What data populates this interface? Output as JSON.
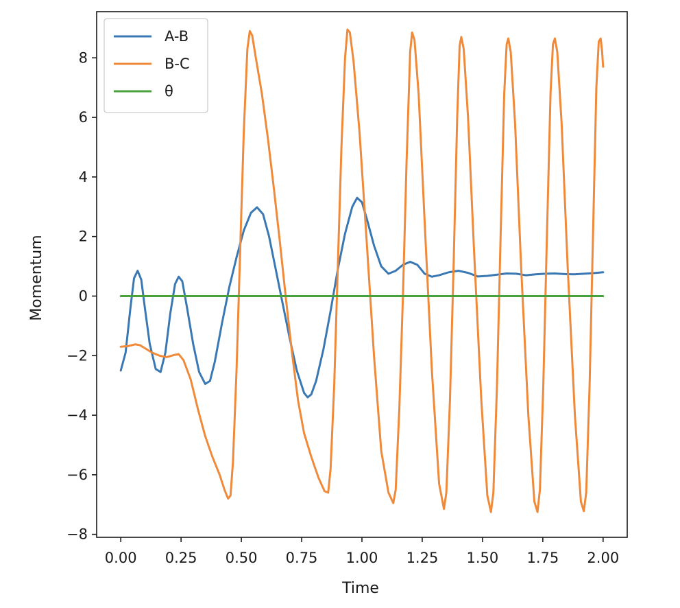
{
  "chart_data": {
    "type": "line",
    "title": "",
    "xlabel": "Time",
    "ylabel": "Momentum",
    "xlim": [
      -0.1,
      2.1
    ],
    "ylim": [
      -8.1,
      9.55
    ],
    "xticks": [
      0.0,
      0.25,
      0.5,
      0.75,
      1.0,
      1.25,
      1.5,
      1.75,
      2.0
    ],
    "xtick_labels": [
      "0.00",
      "0.25",
      "0.50",
      "0.75",
      "1.00",
      "1.25",
      "1.50",
      "1.75",
      "2.00"
    ],
    "yticks": [
      -8,
      -6,
      -4,
      -2,
      0,
      2,
      4,
      6,
      8
    ],
    "ytick_labels": [
      "−8",
      "−6",
      "−4",
      "−2",
      "0",
      "2",
      "4",
      "6",
      "8"
    ],
    "grid": false,
    "legend_position": "top-left",
    "series": [
      {
        "name": "A-B",
        "color": "#3a78b3",
        "points": [
          [
            0.0,
            -2.5
          ],
          [
            0.02,
            -1.9
          ],
          [
            0.04,
            -0.4
          ],
          [
            0.055,
            0.6
          ],
          [
            0.07,
            0.85
          ],
          [
            0.085,
            0.55
          ],
          [
            0.1,
            -0.4
          ],
          [
            0.12,
            -1.6
          ],
          [
            0.145,
            -2.45
          ],
          [
            0.165,
            -2.55
          ],
          [
            0.185,
            -1.9
          ],
          [
            0.205,
            -0.6
          ],
          [
            0.225,
            0.4
          ],
          [
            0.24,
            0.65
          ],
          [
            0.255,
            0.5
          ],
          [
            0.275,
            -0.4
          ],
          [
            0.3,
            -1.6
          ],
          [
            0.325,
            -2.55
          ],
          [
            0.35,
            -2.95
          ],
          [
            0.37,
            -2.85
          ],
          [
            0.39,
            -2.2
          ],
          [
            0.42,
            -0.9
          ],
          [
            0.45,
            0.3
          ],
          [
            0.48,
            1.3
          ],
          [
            0.51,
            2.2
          ],
          [
            0.54,
            2.8
          ],
          [
            0.565,
            2.98
          ],
          [
            0.59,
            2.75
          ],
          [
            0.615,
            2.0
          ],
          [
            0.64,
            1.0
          ],
          [
            0.67,
            -0.2
          ],
          [
            0.7,
            -1.4
          ],
          [
            0.73,
            -2.5
          ],
          [
            0.76,
            -3.25
          ],
          [
            0.775,
            -3.4
          ],
          [
            0.79,
            -3.3
          ],
          [
            0.81,
            -2.85
          ],
          [
            0.84,
            -1.8
          ],
          [
            0.87,
            -0.5
          ],
          [
            0.9,
            0.9
          ],
          [
            0.93,
            2.1
          ],
          [
            0.96,
            3.0
          ],
          [
            0.98,
            3.3
          ],
          [
            1.0,
            3.15
          ],
          [
            1.02,
            2.6
          ],
          [
            1.05,
            1.7
          ],
          [
            1.08,
            1.0
          ],
          [
            1.11,
            0.75
          ],
          [
            1.14,
            0.85
          ],
          [
            1.17,
            1.05
          ],
          [
            1.2,
            1.15
          ],
          [
            1.23,
            1.05
          ],
          [
            1.26,
            0.75
          ],
          [
            1.29,
            0.65
          ],
          [
            1.32,
            0.7
          ],
          [
            1.36,
            0.8
          ],
          [
            1.4,
            0.85
          ],
          [
            1.44,
            0.78
          ],
          [
            1.48,
            0.66
          ],
          [
            1.52,
            0.68
          ],
          [
            1.56,
            0.72
          ],
          [
            1.6,
            0.76
          ],
          [
            1.64,
            0.75
          ],
          [
            1.68,
            0.7
          ],
          [
            1.72,
            0.73
          ],
          [
            1.76,
            0.75
          ],
          [
            1.8,
            0.76
          ],
          [
            1.84,
            0.74
          ],
          [
            1.88,
            0.73
          ],
          [
            1.92,
            0.75
          ],
          [
            1.96,
            0.77
          ],
          [
            2.0,
            0.8
          ]
        ]
      },
      {
        "name": "B-C",
        "color": "#f08a3b",
        "points": [
          [
            0.0,
            -1.7
          ],
          [
            0.03,
            -1.68
          ],
          [
            0.06,
            -1.62
          ],
          [
            0.08,
            -1.65
          ],
          [
            0.1,
            -1.75
          ],
          [
            0.13,
            -1.9
          ],
          [
            0.16,
            -2.0
          ],
          [
            0.19,
            -2.05
          ],
          [
            0.22,
            -1.98
          ],
          [
            0.24,
            -1.95
          ],
          [
            0.26,
            -2.15
          ],
          [
            0.29,
            -2.8
          ],
          [
            0.32,
            -3.8
          ],
          [
            0.35,
            -4.7
          ],
          [
            0.38,
            -5.4
          ],
          [
            0.41,
            -6.0
          ],
          [
            0.43,
            -6.5
          ],
          [
            0.445,
            -6.8
          ],
          [
            0.455,
            -6.7
          ],
          [
            0.465,
            -5.6
          ],
          [
            0.48,
            -2.5
          ],
          [
            0.495,
            1.5
          ],
          [
            0.51,
            5.5
          ],
          [
            0.525,
            8.3
          ],
          [
            0.535,
            8.9
          ],
          [
            0.545,
            8.75
          ],
          [
            0.56,
            8.0
          ],
          [
            0.585,
            6.8
          ],
          [
            0.61,
            5.3
          ],
          [
            0.635,
            3.6
          ],
          [
            0.66,
            1.8
          ],
          [
            0.685,
            -0.1
          ],
          [
            0.71,
            -1.9
          ],
          [
            0.735,
            -3.5
          ],
          [
            0.76,
            -4.6
          ],
          [
            0.79,
            -5.4
          ],
          [
            0.82,
            -6.1
          ],
          [
            0.845,
            -6.55
          ],
          [
            0.86,
            -6.6
          ],
          [
            0.87,
            -5.8
          ],
          [
            0.885,
            -3.0
          ],
          [
            0.9,
            1.0
          ],
          [
            0.915,
            5.0
          ],
          [
            0.93,
            8.0
          ],
          [
            0.94,
            8.95
          ],
          [
            0.95,
            8.85
          ],
          [
            0.965,
            7.9
          ],
          [
            0.99,
            5.5
          ],
          [
            1.02,
            1.8
          ],
          [
            1.05,
            -2.0
          ],
          [
            1.08,
            -5.2
          ],
          [
            1.11,
            -6.6
          ],
          [
            1.13,
            -6.95
          ],
          [
            1.14,
            -6.5
          ],
          [
            1.155,
            -3.8
          ],
          [
            1.17,
            0.0
          ],
          [
            1.185,
            4.5
          ],
          [
            1.2,
            8.2
          ],
          [
            1.208,
            8.85
          ],
          [
            1.218,
            8.6
          ],
          [
            1.235,
            6.8
          ],
          [
            1.26,
            2.5
          ],
          [
            1.29,
            -2.5
          ],
          [
            1.32,
            -6.3
          ],
          [
            1.34,
            -7.15
          ],
          [
            1.35,
            -6.6
          ],
          [
            1.365,
            -3.5
          ],
          [
            1.38,
            1.0
          ],
          [
            1.395,
            6.0
          ],
          [
            1.405,
            8.4
          ],
          [
            1.412,
            8.7
          ],
          [
            1.422,
            8.3
          ],
          [
            1.44,
            6.0
          ],
          [
            1.465,
            1.5
          ],
          [
            1.495,
            -3.5
          ],
          [
            1.52,
            -6.7
          ],
          [
            1.535,
            -7.25
          ],
          [
            1.545,
            -6.6
          ],
          [
            1.56,
            -3.0
          ],
          [
            1.575,
            2.0
          ],
          [
            1.59,
            6.8
          ],
          [
            1.6,
            8.45
          ],
          [
            1.607,
            8.65
          ],
          [
            1.617,
            8.2
          ],
          [
            1.635,
            5.8
          ],
          [
            1.66,
            1.0
          ],
          [
            1.69,
            -4.0
          ],
          [
            1.715,
            -6.9
          ],
          [
            1.728,
            -7.25
          ],
          [
            1.738,
            -6.5
          ],
          [
            1.752,
            -3.0
          ],
          [
            1.767,
            2.0
          ],
          [
            1.782,
            6.8
          ],
          [
            1.792,
            8.45
          ],
          [
            1.8,
            8.65
          ],
          [
            1.81,
            8.2
          ],
          [
            1.828,
            5.8
          ],
          [
            1.853,
            1.0
          ],
          [
            1.883,
            -4.0
          ],
          [
            1.908,
            -6.9
          ],
          [
            1.92,
            -7.22
          ],
          [
            1.93,
            -6.6
          ],
          [
            1.944,
            -3.0
          ],
          [
            1.958,
            2.0
          ],
          [
            1.972,
            7.0
          ],
          [
            1.982,
            8.55
          ],
          [
            1.99,
            8.65
          ],
          [
            1.996,
            8.2
          ],
          [
            2.0,
            7.7
          ]
        ]
      },
      {
        "name": "θ",
        "color": "#49a03c",
        "points": [
          [
            0.0,
            0.0
          ],
          [
            2.0,
            0.0
          ]
        ]
      }
    ]
  }
}
